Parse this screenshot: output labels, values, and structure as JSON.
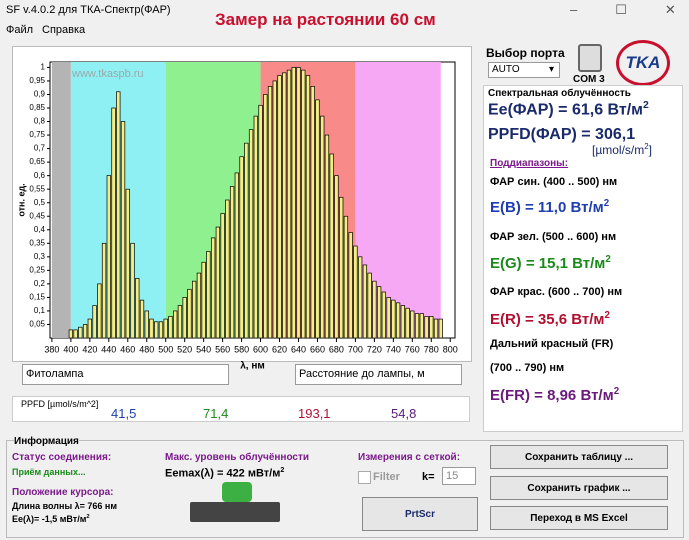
{
  "window": {
    "title": "SF v.4.0.2 для ТКА-Спектр(ФАР)",
    "heading": "Замер на растоянии 60 см"
  },
  "menu": [
    "Файл",
    "Справка"
  ],
  "chart_data": {
    "type": "bar",
    "y_label": "отн. ед.",
    "x_label": "λ, нм",
    "watermark": "www.tkaspb.ru",
    "color": "#f3ef86",
    "bands": [
      {
        "from": 380,
        "to": 400,
        "color": "#b4b4b4"
      },
      {
        "from": 400,
        "to": 500,
        "color": "#8ff0f4"
      },
      {
        "from": 500,
        "to": 600,
        "color": "#8ff08f"
      },
      {
        "from": 600,
        "to": 700,
        "color": "#f88a8a"
      },
      {
        "from": 700,
        "to": 790,
        "color": "#f6a8f4"
      }
    ],
    "x": [
      400,
      405,
      410,
      415,
      420,
      425,
      430,
      435,
      440,
      445,
      450,
      455,
      460,
      465,
      470,
      475,
      480,
      485,
      490,
      495,
      500,
      505,
      510,
      515,
      520,
      525,
      530,
      535,
      540,
      545,
      550,
      555,
      560,
      565,
      570,
      575,
      580,
      585,
      590,
      595,
      600,
      605,
      610,
      615,
      620,
      625,
      630,
      635,
      640,
      645,
      650,
      655,
      660,
      665,
      670,
      675,
      680,
      685,
      690,
      695,
      700,
      705,
      710,
      715,
      720,
      725,
      730,
      735,
      740,
      745,
      750,
      755,
      760,
      765,
      770,
      775,
      780,
      785,
      790
    ],
    "values": [
      0.03,
      0.03,
      0.04,
      0.05,
      0.07,
      0.12,
      0.2,
      0.35,
      0.6,
      0.85,
      0.91,
      0.8,
      0.55,
      0.35,
      0.22,
      0.14,
      0.1,
      0.07,
      0.06,
      0.06,
      0.07,
      0.08,
      0.1,
      0.12,
      0.15,
      0.18,
      0.21,
      0.24,
      0.28,
      0.32,
      0.37,
      0.41,
      0.46,
      0.51,
      0.56,
      0.61,
      0.67,
      0.72,
      0.77,
      0.82,
      0.86,
      0.9,
      0.93,
      0.95,
      0.97,
      0.98,
      0.99,
      1.0,
      1.0,
      0.99,
      0.97,
      0.93,
      0.88,
      0.82,
      0.75,
      0.68,
      0.6,
      0.52,
      0.45,
      0.39,
      0.34,
      0.3,
      0.27,
      0.24,
      0.21,
      0.19,
      0.17,
      0.15,
      0.14,
      0.13,
      0.12,
      0.11,
      0.1,
      0.09,
      0.09,
      0.08,
      0.08,
      0.07,
      0.07
    ],
    "xlim": [
      378,
      805
    ],
    "xticks": [
      380,
      400,
      420,
      440,
      460,
      480,
      500,
      520,
      540,
      560,
      580,
      600,
      620,
      640,
      660,
      680,
      700,
      720,
      740,
      760,
      780,
      800
    ],
    "ylim": [
      0,
      1.02
    ],
    "yticks": [
      {
        "value": 0.05,
        "label": "0,05"
      },
      {
        "value": 0.1,
        "label": "0,1"
      },
      {
        "value": 0.15,
        "label": "0,15"
      },
      {
        "value": 0.2,
        "label": "0,2"
      },
      {
        "value": 0.25,
        "label": "0,25"
      },
      {
        "value": 0.3,
        "label": "0,3"
      },
      {
        "value": 0.35,
        "label": "0,35"
      },
      {
        "value": 0.4,
        "label": "0,4"
      },
      {
        "value": 0.45,
        "label": "0,45"
      },
      {
        "value": 0.5,
        "label": "0,5"
      },
      {
        "value": 0.55,
        "label": "0,55"
      },
      {
        "value": 0.6,
        "label": "0,6"
      },
      {
        "value": 0.65,
        "label": "0,65"
      },
      {
        "value": 0.7,
        "label": "0,7"
      },
      {
        "value": 0.75,
        "label": "0,75"
      },
      {
        "value": 0.8,
        "label": "0,8"
      },
      {
        "value": 0.85,
        "label": "0,85"
      },
      {
        "value": 0.9,
        "label": "0,9"
      },
      {
        "value": 0.95,
        "label": "0,95"
      },
      1
    ]
  },
  "fields": {
    "lamp": "Фитолампа",
    "distance": "Расстояние до лампы, м"
  },
  "ppfd": {
    "label": "PPFD [µmol/s/m^2]",
    "values": [
      "41,5",
      "71,4",
      "193,1",
      "54,8"
    ]
  },
  "right": {
    "port_label": "Выбор порта",
    "port": "AUTO",
    "com": "COM 3",
    "logo": "TKA",
    "section": "Спектральная облучённость",
    "ee": {
      "text": "Ee(ФАР) = 61,6 Вт/м",
      "sup": "2"
    },
    "ppfd": "PPFD(ФАР) = 306,1",
    "ppfd_unit": {
      "text": "[µmol/s/m",
      "sup": "2",
      "end": "]"
    },
    "sub": "Поддиапазоны:",
    "ranges": [
      {
        "label": "ФАР син. (400 .. 500) нм",
        "value": "E(B) = 11,0 Вт/м",
        "sup": "2"
      },
      {
        "label": "ФАР зел. (500 .. 600) нм",
        "value": "E(G) = 15,1 Вт/м",
        "sup": "2"
      },
      {
        "label": "ФАР крас. (600 .. 700) нм",
        "value": "E(R) = 35,6 Вт/м",
        "sup": "2"
      }
    ],
    "fr_label": "Дальний красный (FR)",
    "fr_range": "(700 .. 790) нм",
    "fr": {
      "text": "E(FR) = 8,96 Вт/м",
      "sup": "2"
    }
  },
  "info": {
    "title": "Информация",
    "status_label": "Статус соединения:",
    "status": "Приём данных...",
    "cursor_label": "Положение курсора:",
    "wavelength": "Длина волны λ= 766 нм",
    "ee": {
      "text": "Ee(λ)= -1,5 мВт/м",
      "sup": "2"
    },
    "max_label": "Макс. уровень облучённости",
    "max": {
      "text": "Eemax(λ) = 422 мВт/м",
      "sup": "2"
    },
    "grid_label": "Измерения с сеткой:",
    "filter": "Filter",
    "k": "k=",
    "k_value": "15",
    "prtscr": "PrtScr",
    "buttons": [
      "Сохранить таблицу ...",
      "Сохранить график ...",
      "Переход в MS Excel"
    ]
  }
}
